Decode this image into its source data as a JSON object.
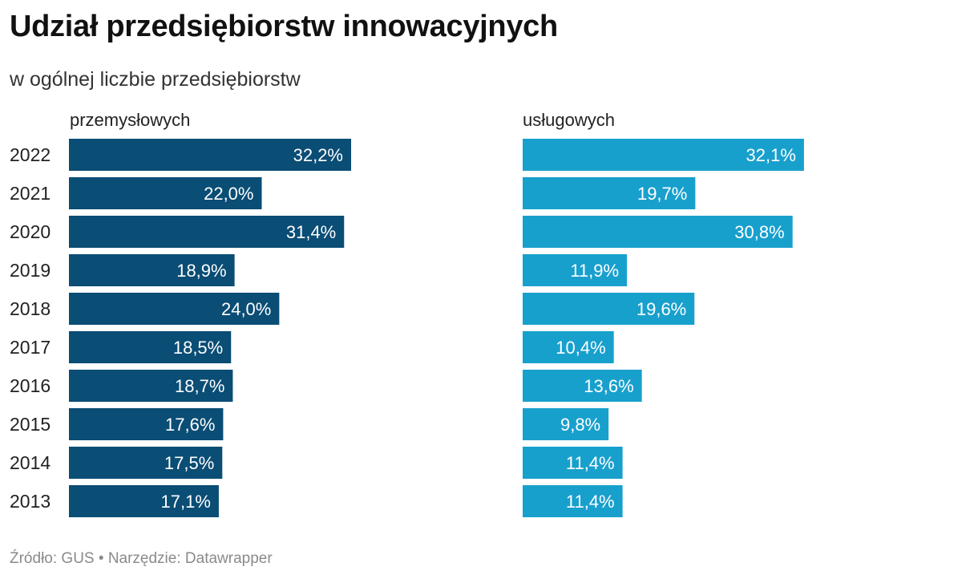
{
  "title": "Udział przedsiębiorstw innowacyjnych",
  "subtitle": "w ogólnej liczbie przedsiębiorstw",
  "footer": {
    "source": "Źródło: GUS",
    "separator": "•",
    "tool": "Narzędzie: Datawrapper"
  },
  "chart_data": {
    "type": "bar",
    "orientation": "horizontal",
    "categories": [
      "2022",
      "2021",
      "2020",
      "2019",
      "2018",
      "2017",
      "2016",
      "2015",
      "2014",
      "2013"
    ],
    "series": [
      {
        "name": "przemysłowych",
        "color": "#0a4d75",
        "values": [
          32.2,
          22.0,
          31.4,
          18.9,
          24.0,
          18.5,
          18.7,
          17.6,
          17.5,
          17.1
        ],
        "labels": [
          "32,2%",
          "22,0%",
          "31,4%",
          "18,9%",
          "24,0%",
          "18,5%",
          "18,7%",
          "17,6%",
          "17,5%",
          "17,1%"
        ]
      },
      {
        "name": "usługowych",
        "color": "#18a0cd",
        "values": [
          32.1,
          19.7,
          30.8,
          11.9,
          19.6,
          10.4,
          13.6,
          9.8,
          11.4,
          11.4
        ],
        "labels": [
          "32,1%",
          "19,7%",
          "30,8%",
          "11,9%",
          "19,6%",
          "10,4%",
          "13,6%",
          "9,8%",
          "11,4%",
          "11,4%"
        ]
      }
    ],
    "xlim": [
      0,
      32.2
    ],
    "grid": false,
    "legend": "none"
  }
}
